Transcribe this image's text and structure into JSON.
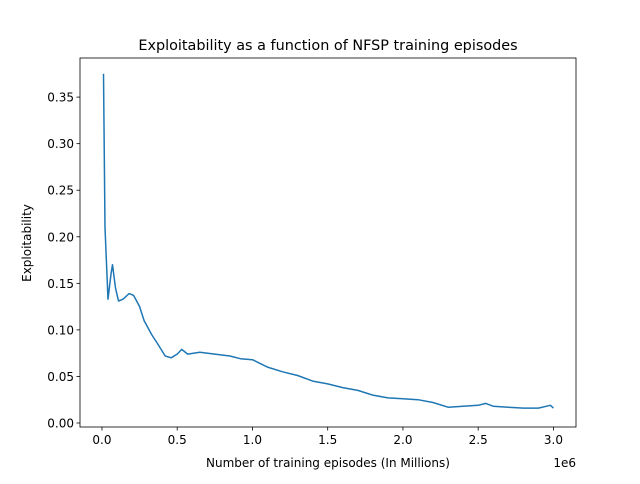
{
  "chart_data": {
    "type": "line",
    "title": "Exploitability as a function of NFSP training episodes",
    "xlabel": "Number of training episodes (In Millions)",
    "ylabel": "Exploitability",
    "x_offset_label": "1e6",
    "xlim": [
      -0.146,
      3.15
    ],
    "ylim": [
      -0.0043,
      0.392
    ],
    "xticks": [
      0.0,
      0.5,
      1.0,
      1.5,
      2.0,
      2.5,
      3.0
    ],
    "xtick_labels": [
      "0.0",
      "0.5",
      "1.0",
      "1.5",
      "2.0",
      "2.5",
      "3.0"
    ],
    "yticks": [
      0.0,
      0.05,
      0.1,
      0.15,
      0.2,
      0.25,
      0.3,
      0.35
    ],
    "ytick_labels": [
      "0.00",
      "0.05",
      "0.10",
      "0.15",
      "0.20",
      "0.25",
      "0.30",
      "0.35"
    ],
    "grid": false,
    "color": "#1f77b4",
    "series": [
      {
        "x": [
          0.01,
          0.02,
          0.04,
          0.06,
          0.07,
          0.09,
          0.11,
          0.14,
          0.18,
          0.21,
          0.25,
          0.28,
          0.33,
          0.37,
          0.42,
          0.46,
          0.5,
          0.53,
          0.57,
          0.65,
          0.75,
          0.85,
          0.92,
          1.0,
          1.05,
          1.1,
          1.2,
          1.3,
          1.4,
          1.5,
          1.6,
          1.7,
          1.8,
          1.9,
          2.0,
          2.1,
          2.2,
          2.3,
          2.4,
          2.5,
          2.55,
          2.6,
          2.7,
          2.8,
          2.9,
          2.98,
          3.0
        ],
        "y": [
          0.375,
          0.21,
          0.133,
          0.16,
          0.17,
          0.145,
          0.131,
          0.133,
          0.139,
          0.137,
          0.125,
          0.11,
          0.095,
          0.085,
          0.072,
          0.07,
          0.074,
          0.079,
          0.074,
          0.076,
          0.074,
          0.072,
          0.069,
          0.068,
          0.064,
          0.06,
          0.055,
          0.051,
          0.045,
          0.042,
          0.038,
          0.035,
          0.03,
          0.027,
          0.026,
          0.025,
          0.022,
          0.017,
          0.018,
          0.019,
          0.021,
          0.018,
          0.017,
          0.016,
          0.016,
          0.019,
          0.016
        ]
      }
    ]
  }
}
